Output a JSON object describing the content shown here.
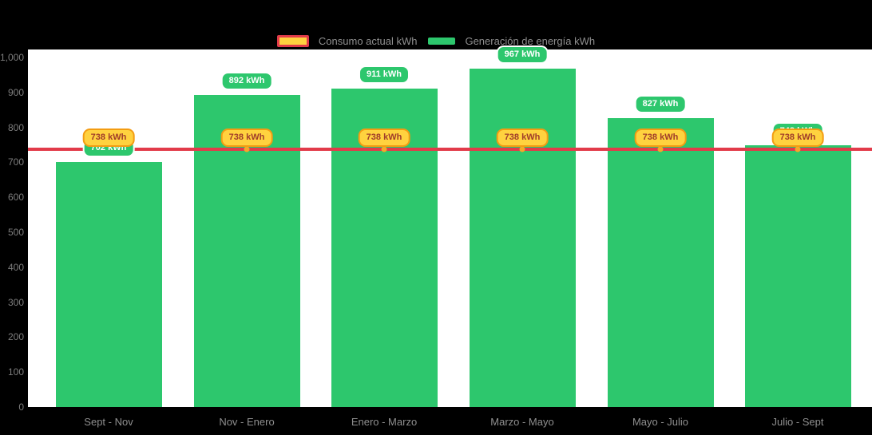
{
  "chart_data": {
    "type": "bar",
    "title": "",
    "categories": [
      "Sept - Nov",
      "Nov - Enero",
      "Enero - Marzo",
      "Marzo - Mayo",
      "Mayo - Julio",
      "Julio - Sept"
    ],
    "series": [
      {
        "name": "Generación de energía kWh",
        "kind": "bar",
        "color": "#2dc76d",
        "values": [
          702,
          892,
          911,
          967,
          827,
          748
        ]
      },
      {
        "name": "Consumo actual kWh",
        "kind": "line",
        "color": "#e23b4a",
        "marker_color": "#f6a72a",
        "values": [
          738,
          738,
          738,
          738,
          738,
          738
        ]
      }
    ],
    "bar_labels": [
      "702 kWh",
      "892 kWh",
      "911 kWh",
      "967 kWh",
      "827 kWh",
      "748 kWh"
    ],
    "line_labels": [
      "738 kWh",
      "738 kWh",
      "738 kWh",
      "738 kWh",
      "738 kWh",
      "738 kWh"
    ],
    "y_ticks": [
      "1,000",
      "900",
      "800",
      "700",
      "600",
      "500",
      "400",
      "300",
      "200",
      "100",
      "0"
    ],
    "ylim": [
      0,
      1000
    ],
    "grid": false,
    "legend_position": "top-center",
    "legend": [
      {
        "label": "Consumo actual kWh",
        "swatch_fill": "#ffd23f",
        "swatch_border": "#e23b4a"
      },
      {
        "label": "Generación de energía kWh",
        "swatch_fill": "#2dc76d",
        "swatch_border": ""
      }
    ],
    "colors": {
      "bar_green": "#2dc76d",
      "line_red": "#e23b4a",
      "line_marker_orange": "#f6a72a",
      "badge_orange_fill": "#ffd23f",
      "badge_orange_border": "#f39c12",
      "badge_orange_text": "#a03c2a",
      "badge_green_fill": "#2dc76d",
      "badge_green_text": "#ffffff",
      "axis_text": "#8a8a8a",
      "plot_background": "#ffffff",
      "page_background": "#000000"
    }
  }
}
